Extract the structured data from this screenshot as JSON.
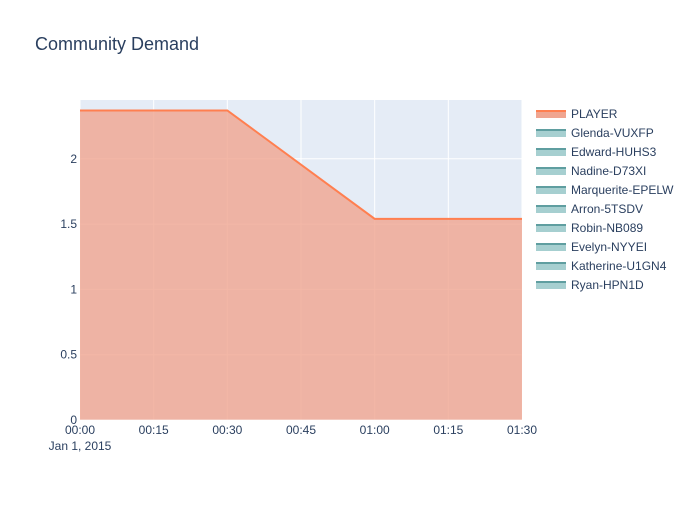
{
  "chart_data": {
    "type": "area",
    "title": "Community Demand",
    "xlabel": "",
    "ylabel": "",
    "x_tick_labels": [
      "00:00",
      "00:15",
      "00:30",
      "00:45",
      "01:00",
      "01:15",
      "01:30"
    ],
    "x_date_label": "Jan 1, 2015",
    "x_range": [
      "2015-01-01 00:00",
      "2015-01-01 01:30"
    ],
    "y_ticks": [
      0,
      0.5,
      1,
      1.5,
      2
    ],
    "ylim": [
      0,
      2.45
    ],
    "grid": true,
    "legend_position": "right",
    "series": [
      {
        "name": "PLAYER",
        "x": [
          "2015-01-01 00:00",
          "2015-01-01 00:30",
          "2015-01-01 01:00",
          "2015-01-01 01:30"
        ],
        "values": [
          2.37,
          2.37,
          1.54,
          1.54
        ],
        "line_color": "#ff7f50",
        "fill_color": "#f0a590"
      },
      {
        "name": "Glenda-VUXFP",
        "x": [],
        "values": [],
        "line_color": "#5f9ea0",
        "fill_color": "#a6cfd0"
      },
      {
        "name": "Edward-HUHS3",
        "x": [],
        "values": [],
        "line_color": "#5f9ea0",
        "fill_color": "#a6cfd0"
      },
      {
        "name": "Nadine-D73XI",
        "x": [],
        "values": [],
        "line_color": "#5f9ea0",
        "fill_color": "#a6cfd0"
      },
      {
        "name": "Marquerite-EPELW",
        "x": [],
        "values": [],
        "line_color": "#5f9ea0",
        "fill_color": "#a6cfd0"
      },
      {
        "name": "Arron-5TSDV",
        "x": [],
        "values": [],
        "line_color": "#5f9ea0",
        "fill_color": "#a6cfd0"
      },
      {
        "name": "Robin-NB089",
        "x": [],
        "values": [],
        "line_color": "#5f9ea0",
        "fill_color": "#a6cfd0"
      },
      {
        "name": "Evelyn-NYYEI",
        "x": [],
        "values": [],
        "line_color": "#5f9ea0",
        "fill_color": "#a6cfd0"
      },
      {
        "name": "Katherine-U1GN4",
        "x": [],
        "values": [],
        "line_color": "#5f9ea0",
        "fill_color": "#a6cfd0"
      },
      {
        "name": "Ryan-HPN1D",
        "x": [],
        "values": [],
        "line_color": "#5f9ea0",
        "fill_color": "#a6cfd0"
      }
    ],
    "colors": {
      "plot_bg": "#e5ecf6",
      "grid": "#ffffff",
      "text": "#2a3f5f",
      "title": "#2a3f5f"
    }
  }
}
